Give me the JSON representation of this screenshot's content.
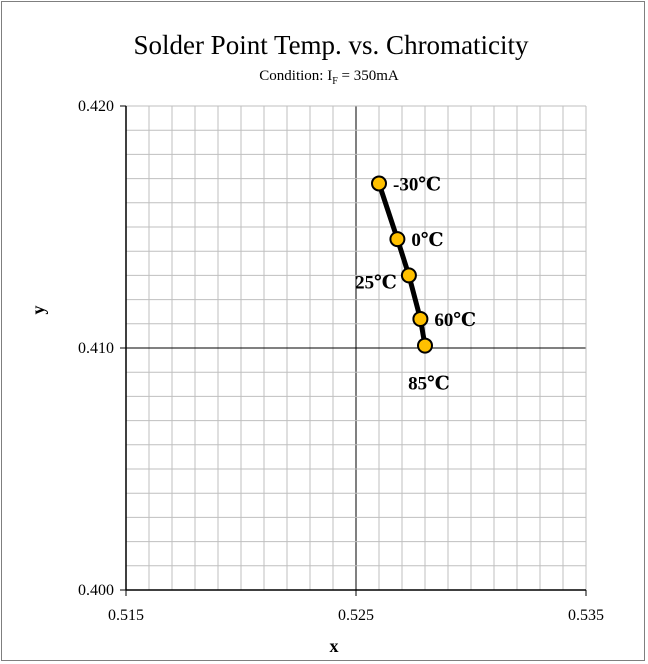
{
  "chart_data": {
    "type": "scatter",
    "title": "Solder Point Temp. vs. Chromaticity",
    "subtitle": {
      "prefix": "Condition: I",
      "subscript": "F",
      "suffix": " = 350mA"
    },
    "xlabel": "x",
    "ylabel": "y",
    "xlim": [
      0.515,
      0.535
    ],
    "ylim": [
      0.4,
      0.42
    ],
    "x_ticks": [
      {
        "value": 0.515,
        "label": "0.515"
      },
      {
        "value": 0.525,
        "label": "0.525"
      },
      {
        "value": 0.535,
        "label": "0.535"
      }
    ],
    "y_ticks": [
      {
        "value": 0.4,
        "label": "0.400"
      },
      {
        "value": 0.41,
        "label": "0.410"
      },
      {
        "value": 0.42,
        "label": "0.420"
      }
    ],
    "x_grid_step": 0.001,
    "y_grid_step": 0.001,
    "grid": true,
    "series": [
      {
        "line_color": "#000000",
        "marker_color": "#FFC000",
        "marker_edge": "#000000",
        "points": [
          {
            "x": 0.526,
            "y": 0.4168,
            "label": "-30℃",
            "label_pos": "right"
          },
          {
            "x": 0.5268,
            "y": 0.4145,
            "label": "0℃",
            "label_pos": "right"
          },
          {
            "x": 0.5273,
            "y": 0.413,
            "label": "25℃",
            "label_pos": "left"
          },
          {
            "x": 0.5278,
            "y": 0.4112,
            "label": "60℃",
            "label_pos": "right"
          },
          {
            "x": 0.528,
            "y": 0.4101,
            "label": "85℃",
            "label_pos": "below"
          }
        ]
      }
    ]
  }
}
